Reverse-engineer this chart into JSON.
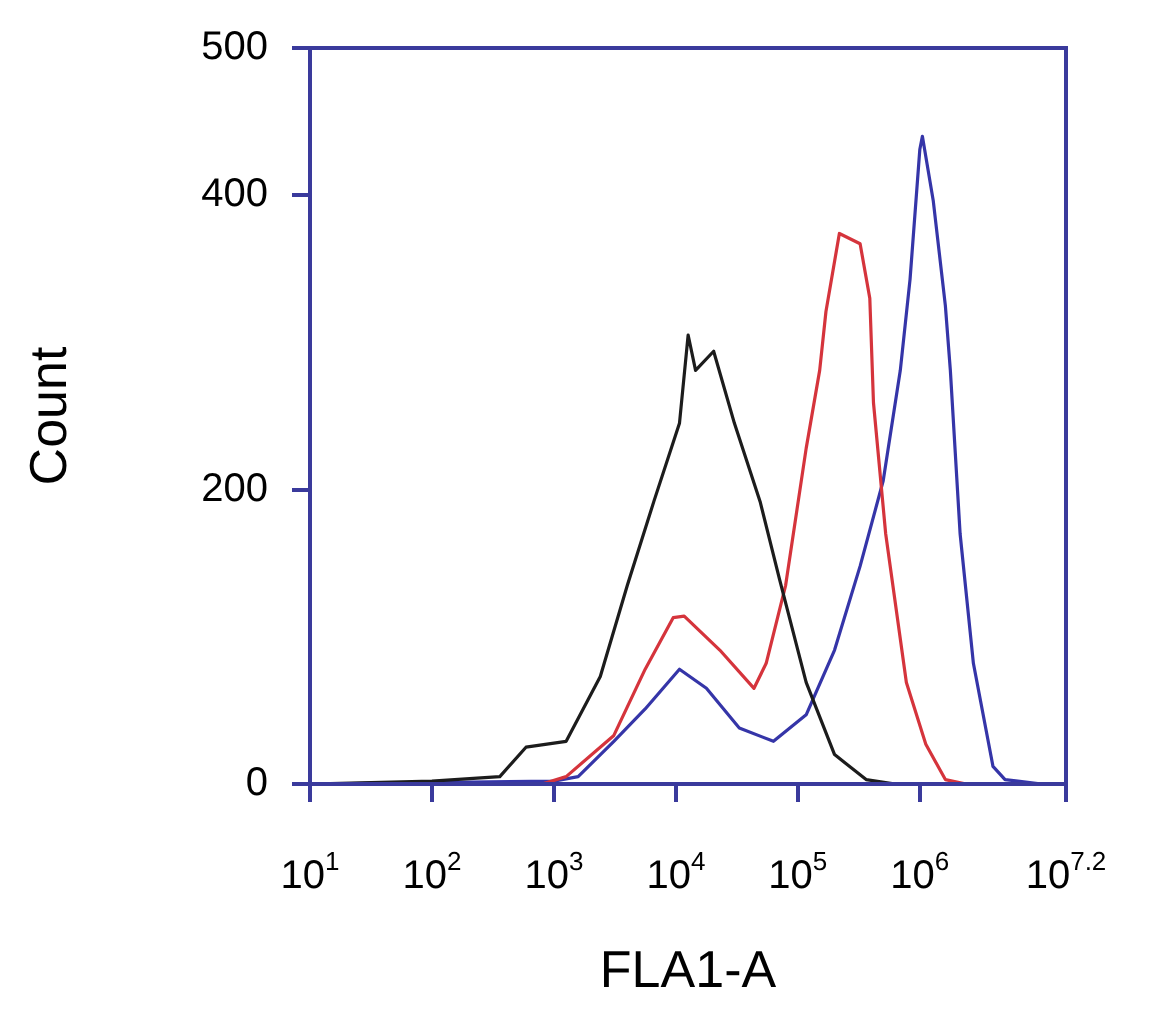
{
  "chart_data": {
    "type": "line",
    "xlabel": "FLA1-A",
    "ylabel": "Count",
    "log": "x",
    "grid": false,
    "legend": false,
    "marker": "none",
    "line_style": "solid",
    "xlim": [
      10,
      15800000
    ],
    "xticks": [
      {
        "value": 10,
        "label": "10$^{1}$"
      },
      {
        "value": 100,
        "label": "10$^{2}$"
      },
      {
        "value": 1000,
        "label": "10$^{3}$"
      },
      {
        "value": 10000,
        "label": "10$^{4}$"
      },
      {
        "value": 100000,
        "label": "10$^{5}$"
      },
      {
        "value": 1000000,
        "label": "10$^{6}$"
      },
      {
        "value": 15800000,
        "label": "10$^{7.2}$"
      }
    ],
    "ylim": [
      0,
      500
    ],
    "yticks": [
      0,
      200,
      400,
      500
    ],
    "series": [
      {
        "color": "#1c1c1c",
        "x": [
          10,
          100,
          360,
          590,
          1260,
          2400,
          4000,
          6600,
          10700,
          12600,
          14500,
          20400,
          30200,
          49000,
          70800,
          117000,
          200000,
          363000,
          630000
        ],
        "values": [
          0,
          2,
          5,
          25,
          29,
          73,
          135,
          192,
          245,
          305,
          281,
          294,
          245,
          192,
          139,
          69,
          20,
          3,
          0
        ]
      },
      {
        "color": "#d5343c",
        "x": [
          800,
          1260,
          3100,
          5600,
          9500,
          11700,
          22900,
          43700,
          55000,
          79400,
          117000,
          151000,
          170000,
          219000,
          324000,
          389000,
          417000,
          525000,
          776000,
          1120000,
          1620000,
          2400000
        ],
        "values": [
          0,
          5,
          33,
          78,
          113,
          114,
          91,
          65,
          82,
          135,
          228,
          281,
          321,
          374,
          367,
          330,
          259,
          170,
          69,
          27,
          3,
          0
        ]
      },
      {
        "color": "#3535a8",
        "x": [
          10,
          1000,
          1580,
          3100,
          5600,
          10700,
          17800,
          33100,
          63100,
          117000,
          200000,
          324000,
          501000,
          692000,
          832000,
          1000000,
          1050000,
          1290000,
          1620000,
          1780000,
          2140000,
          2750000,
          3980000,
          5000000,
          10000000
        ],
        "values": [
          0,
          2,
          5,
          29,
          51,
          78,
          65,
          38,
          29,
          47,
          91,
          148,
          206,
          281,
          343,
          431,
          440,
          396,
          325,
          281,
          170,
          82,
          12,
          3,
          0
        ]
      }
    ]
  }
}
